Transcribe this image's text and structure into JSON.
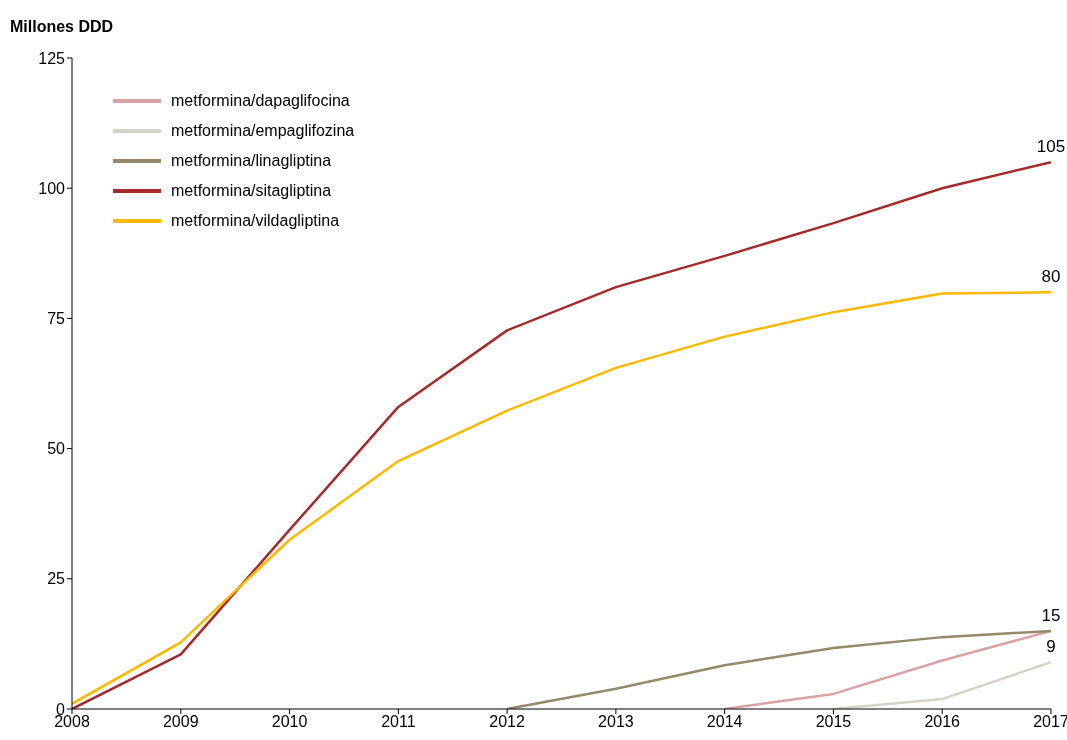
{
  "chart_data": {
    "type": "line",
    "ylabel": "Millones DDD",
    "x": [
      2008,
      2009,
      2010,
      2011,
      2012,
      2013,
      2014,
      2015,
      2016,
      2017
    ],
    "xlim": [
      2008,
      2017
    ],
    "xticks": [
      2008,
      2009,
      2010,
      2011,
      2012,
      2013,
      2014,
      2015,
      2016,
      2017
    ],
    "ylim": [
      0,
      125
    ],
    "yticks": [
      0,
      25,
      50,
      75,
      100,
      125
    ],
    "grid": false,
    "legend": "top left",
    "marker": "none",
    "line_style": "solid",
    "series": [
      {
        "name": "metformina/dapaglifocina",
        "color": "#d9a3a6",
        "values": [
          null,
          null,
          null,
          null,
          null,
          null,
          0,
          2.9,
          9.3,
          15
        ],
        "value_labels": [
          null,
          null,
          null,
          null,
          null,
          null,
          null,
          null,
          null,
          null
        ]
      },
      {
        "name": "metformina/empaglifozina",
        "color": "#d6d3c4",
        "values": [
          null,
          null,
          null,
          null,
          null,
          null,
          null,
          0,
          1.9,
          9
        ],
        "value_labels": [
          null,
          null,
          null,
          null,
          null,
          null,
          null,
          null,
          null,
          "9"
        ]
      },
      {
        "name": "metformina/linagliptina",
        "color": "#948a6a",
        "values": [
          null,
          null,
          null,
          null,
          0,
          3.9,
          8.4,
          11.7,
          13.8,
          15
        ],
        "value_labels": [
          null,
          null,
          null,
          null,
          null,
          null,
          null,
          null,
          null,
          "15"
        ]
      },
      {
        "name": "metformina/sitagliptina",
        "color": "#a52a2a",
        "values": [
          0,
          10.5,
          34.4,
          58,
          72.7,
          81,
          87,
          93.3,
          100,
          105
        ],
        "value_labels": [
          null,
          null,
          null,
          null,
          null,
          null,
          null,
          null,
          null,
          "105"
        ]
      },
      {
        "name": "metformina/vildagliptina",
        "color": "#ffb800",
        "values": [
          1,
          12.8,
          32.5,
          47.6,
          57.3,
          65.5,
          71.5,
          76.2,
          79.8,
          80
        ],
        "value_labels": [
          null,
          null,
          null,
          null,
          null,
          null,
          null,
          null,
          null,
          "80"
        ]
      }
    ]
  }
}
